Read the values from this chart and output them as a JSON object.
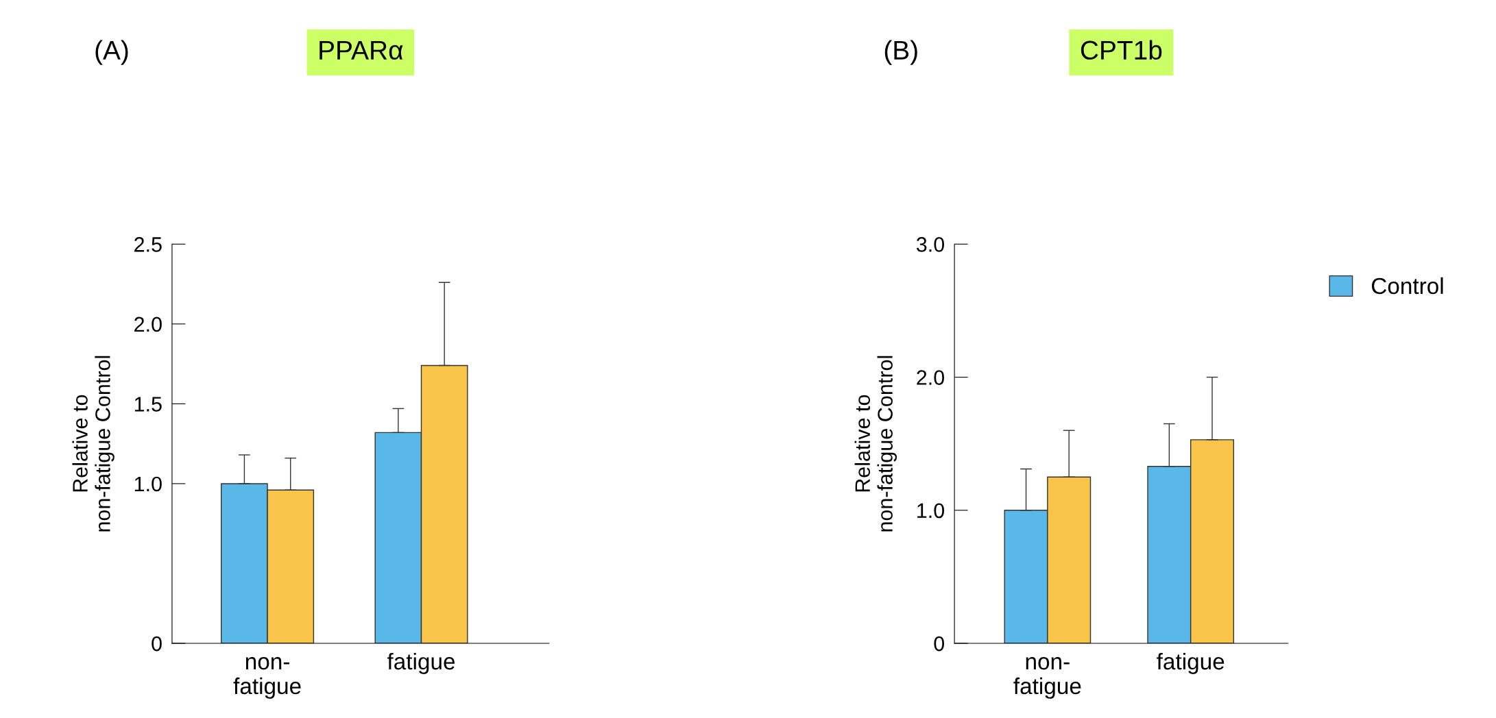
{
  "chart_data": [
    {
      "type": "bar",
      "title": "PPARα",
      "annotations": [
        "(A)"
      ],
      "ylabel": "Relative to\nnon-fatigue Control",
      "categories": [
        "non-\nfatigue",
        "fatigue"
      ],
      "series": [
        {
          "name": "Control",
          "color": "#5ab8e8",
          "values": [
            1.0,
            1.32
          ],
          "errors": [
            [
              1.0,
              1.18
            ],
            [
              1.32,
              1.47
            ]
          ]
        },
        {
          "color": "#f9c44a",
          "values": [
            0.96,
            1.74
          ],
          "errors": [
            [
              0.96,
              1.16
            ],
            [
              1.74,
              2.26
            ]
          ]
        }
      ],
      "ylim": [
        0,
        2.5
      ],
      "yticks": [
        {
          "value": 0,
          "label": "0"
        },
        {
          "value": 1.0,
          "label": "1.0"
        },
        {
          "value": 1.5,
          "label": "1.5"
        },
        {
          "value": 2.0,
          "label": "2.0"
        },
        {
          "value": 2.5,
          "label": "2.5"
        }
      ],
      "grid": false,
      "legend": "right"
    },
    {
      "type": "bar",
      "title": "CPT1b",
      "annotations": [
        "(B)"
      ],
      "ylabel": "Relative to\nnon-fatigue Control",
      "categories": [
        "non-\nfatigue",
        "fatigue"
      ],
      "series": [
        {
          "name": "Control",
          "color": "#5ab8e8",
          "values": [
            1.0,
            1.33
          ],
          "errors": [
            [
              1.0,
              1.31
            ],
            [
              1.33,
              1.65
            ]
          ]
        },
        {
          "color": "#f9c44a",
          "values": [
            1.25,
            1.53
          ],
          "errors": [
            [
              1.25,
              1.6
            ],
            [
              1.53,
              2.0
            ]
          ]
        }
      ],
      "ylim": [
        0,
        3.0
      ],
      "yticks": [
        {
          "value": 0,
          "label": "0"
        },
        {
          "value": 1.0,
          "label": "1.0"
        },
        {
          "value": 2.0,
          "label": "2.0"
        },
        {
          "value": 3.0,
          "label": "3.0"
        }
      ],
      "grid": false,
      "legend": "right"
    }
  ]
}
